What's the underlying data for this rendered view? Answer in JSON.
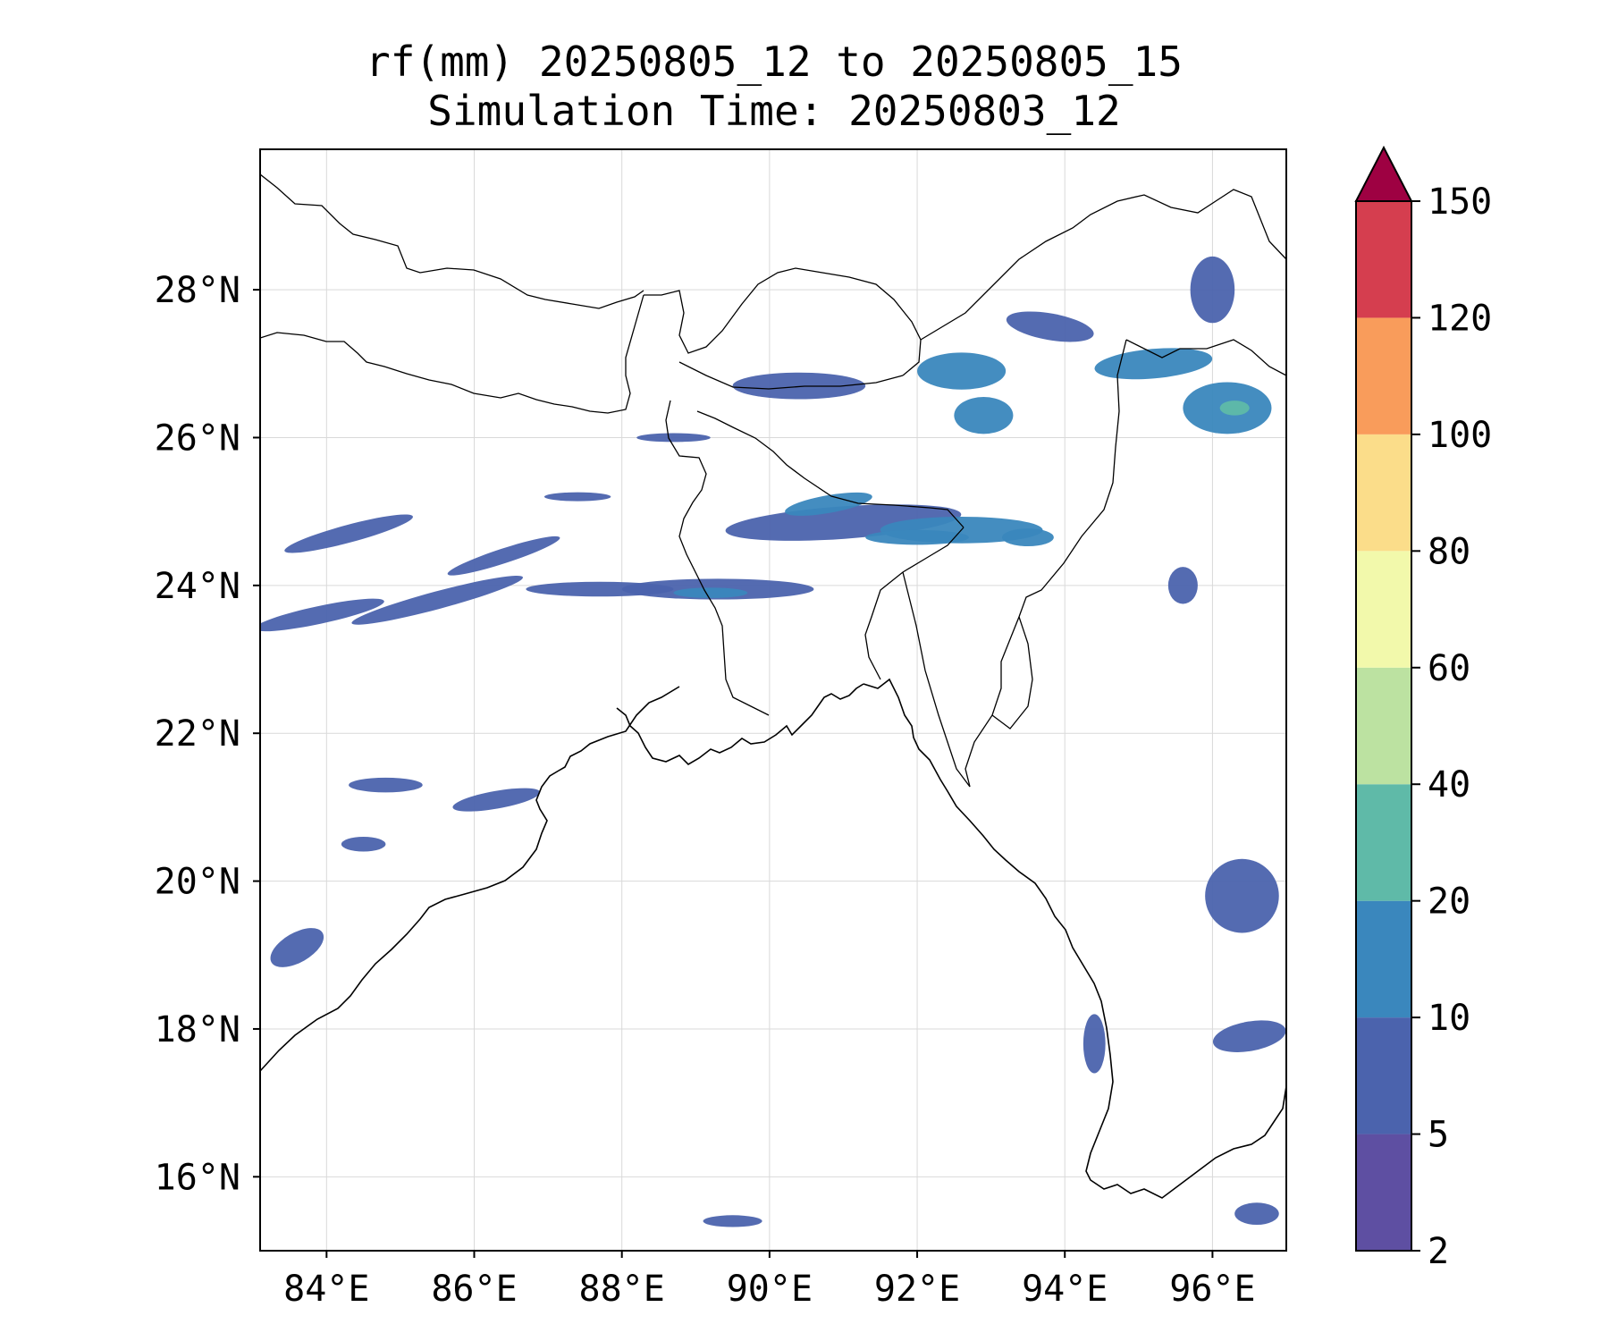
{
  "figure": {
    "title_line1": "rf(mm) 20250805_12 to 20250805_15",
    "title_line2": "Simulation Time: 20250803_12"
  },
  "map": {
    "lon_range": [
      83.1,
      97.0
    ],
    "lat_range": [
      15.0,
      29.9
    ],
    "lon_ticks": [
      84,
      86,
      88,
      90,
      92,
      94,
      96
    ],
    "lat_ticks": [
      16,
      18,
      20,
      22,
      24,
      26,
      28
    ],
    "lon_tick_labels": [
      "84°E",
      "86°E",
      "88°E",
      "90°E",
      "92°E",
      "94°E",
      "96°E"
    ],
    "lat_tick_labels": [
      "16°N",
      "18°N",
      "20°N",
      "22°N",
      "24°N",
      "26°N",
      "28°N"
    ],
    "grid": true
  },
  "colorbar": {
    "levels": [
      2,
      5,
      10,
      20,
      40,
      60,
      80,
      100,
      120,
      150
    ],
    "level_labels": [
      "2",
      "5",
      "10",
      "20",
      "40",
      "60",
      "80",
      "100",
      "120",
      "150"
    ],
    "colors": [
      "#5e4fa2",
      "#4b63ad",
      "#3a87bd",
      "#5fbaa8",
      "#bce2a1",
      "#f2f9ab",
      "#fbdd8a",
      "#f99c5b",
      "#d53e4f",
      "#9e0142"
    ],
    "extend": "max"
  },
  "chart_data": {
    "type": "heatmap",
    "title": "rf(mm) 20250805_12 to 20250805_15\nSimulation Time: 20250803_12",
    "xlabel": "",
    "ylabel": "",
    "xlim": [
      83.1,
      97.0
    ],
    "ylim": [
      15.0,
      29.9
    ],
    "color_levels": [
      2,
      5,
      10,
      20,
      40,
      60,
      80,
      100,
      120,
      150
    ],
    "rain_cells": [
      {
        "lon": 91.0,
        "lat": 24.85,
        "rx": 1.6,
        "ry": 0.22,
        "rot": -4,
        "mm": 5
      },
      {
        "lon": 92.6,
        "lat": 24.75,
        "rx": 1.1,
        "ry": 0.18,
        "rot": 0,
        "mm": 10
      },
      {
        "lon": 90.8,
        "lat": 25.1,
        "rx": 0.6,
        "ry": 0.12,
        "rot": -10,
        "mm": 10
      },
      {
        "lon": 92.0,
        "lat": 24.65,
        "rx": 0.7,
        "ry": 0.1,
        "rot": 0,
        "mm": 10
      },
      {
        "lon": 93.5,
        "lat": 24.65,
        "rx": 0.35,
        "ry": 0.12,
        "rot": 0,
        "mm": 10
      },
      {
        "lon": 89.3,
        "lat": 23.95,
        "rx": 1.3,
        "ry": 0.14,
        "rot": 0,
        "mm": 5
      },
      {
        "lon": 89.2,
        "lat": 23.9,
        "rx": 0.5,
        "ry": 0.07,
        "rot": 0,
        "mm": 10
      },
      {
        "lon": 87.7,
        "lat": 23.95,
        "rx": 1.0,
        "ry": 0.1,
        "rot": 0,
        "mm": 5
      },
      {
        "lon": 85.5,
        "lat": 23.8,
        "rx": 1.2,
        "ry": 0.12,
        "rot": -15,
        "mm": 5
      },
      {
        "lon": 83.9,
        "lat": 23.6,
        "rx": 0.9,
        "ry": 0.12,
        "rot": -12,
        "mm": 5
      },
      {
        "lon": 84.3,
        "lat": 24.7,
        "rx": 0.9,
        "ry": 0.12,
        "rot": -15,
        "mm": 5
      },
      {
        "lon": 86.4,
        "lat": 24.4,
        "rx": 0.8,
        "ry": 0.1,
        "rot": -18,
        "mm": 5
      },
      {
        "lon": 87.4,
        "lat": 25.2,
        "rx": 0.45,
        "ry": 0.06,
        "rot": 0,
        "mm": 5
      },
      {
        "lon": 88.7,
        "lat": 26.0,
        "rx": 0.5,
        "ry": 0.06,
        "rot": 0,
        "mm": 5
      },
      {
        "lon": 90.4,
        "lat": 26.7,
        "rx": 0.9,
        "ry": 0.18,
        "rot": 0,
        "mm": 5
      },
      {
        "lon": 92.6,
        "lat": 26.9,
        "rx": 0.6,
        "ry": 0.25,
        "rot": 0,
        "mm": 10
      },
      {
        "lon": 92.9,
        "lat": 26.3,
        "rx": 0.4,
        "ry": 0.25,
        "rot": 0,
        "mm": 10
      },
      {
        "lon": 93.8,
        "lat": 27.5,
        "rx": 0.6,
        "ry": 0.18,
        "rot": 10,
        "mm": 5
      },
      {
        "lon": 95.2,
        "lat": 27.0,
        "rx": 0.8,
        "ry": 0.2,
        "rot": -5,
        "mm": 10
      },
      {
        "lon": 96.2,
        "lat": 26.4,
        "rx": 0.6,
        "ry": 0.35,
        "rot": 0,
        "mm": 10
      },
      {
        "lon": 96.3,
        "lat": 26.4,
        "rx": 0.2,
        "ry": 0.1,
        "rot": 0,
        "mm": 20
      },
      {
        "lon": 96.0,
        "lat": 28.0,
        "rx": 0.3,
        "ry": 0.45,
        "rot": 0,
        "mm": 5
      },
      {
        "lon": 95.6,
        "lat": 24.0,
        "rx": 0.2,
        "ry": 0.25,
        "rot": 0,
        "mm": 5
      },
      {
        "lon": 96.4,
        "lat": 19.8,
        "rx": 0.5,
        "ry": 0.5,
        "rot": 0,
        "mm": 5
      },
      {
        "lon": 96.5,
        "lat": 17.9,
        "rx": 0.5,
        "ry": 0.2,
        "rot": -10,
        "mm": 5
      },
      {
        "lon": 86.3,
        "lat": 21.1,
        "rx": 0.6,
        "ry": 0.12,
        "rot": -10,
        "mm": 5
      },
      {
        "lon": 84.8,
        "lat": 21.3,
        "rx": 0.5,
        "ry": 0.1,
        "rot": 0,
        "mm": 5
      },
      {
        "lon": 83.6,
        "lat": 19.1,
        "rx": 0.4,
        "ry": 0.2,
        "rot": -30,
        "mm": 5
      },
      {
        "lon": 84.5,
        "lat": 20.5,
        "rx": 0.3,
        "ry": 0.1,
        "rot": 0,
        "mm": 5
      },
      {
        "lon": 94.4,
        "lat": 17.8,
        "rx": 0.15,
        "ry": 0.4,
        "rot": 0,
        "mm": 5
      },
      {
        "lon": 89.5,
        "lat": 15.4,
        "rx": 0.4,
        "ry": 0.08,
        "rot": 0,
        "mm": 5
      },
      {
        "lon": 96.6,
        "lat": 15.5,
        "rx": 0.3,
        "ry": 0.15,
        "rot": 0,
        "mm": 5
      }
    ]
  }
}
